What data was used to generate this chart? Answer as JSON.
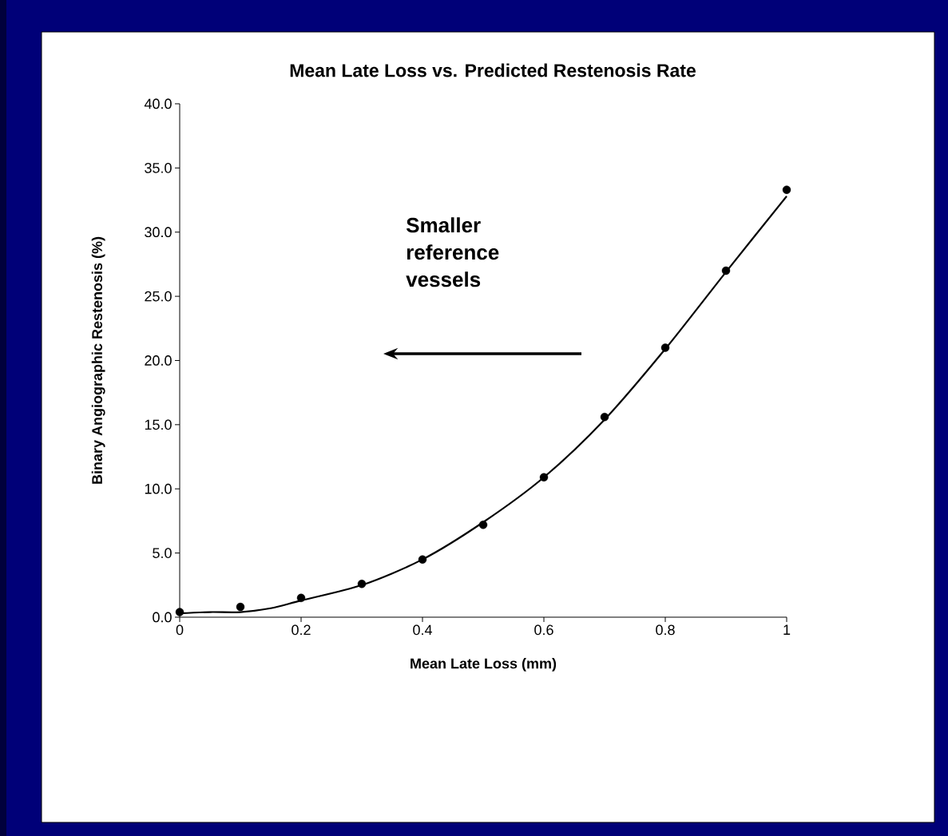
{
  "chart_data": {
    "type": "scatter",
    "title": "Mean Late Loss vs. Predicted Restenosis Rate",
    "xlabel": "Mean Late Loss (mm)",
    "ylabel": "Binary Angiographic Restenosis (%)",
    "annotations": [
      "Smaller reference vessels"
    ],
    "xlim": [
      0,
      1
    ],
    "xticks": [
      0,
      0.2,
      0.4,
      0.6,
      0.8,
      1
    ],
    "ylim": [
      0,
      40
    ],
    "yticks": [
      {
        "value": 0,
        "label": "0.0"
      },
      {
        "value": 5,
        "label": "5.0"
      },
      {
        "value": 10,
        "label": "10.0"
      },
      {
        "value": 15,
        "label": "15.0"
      },
      {
        "value": 20,
        "label": "20.0"
      },
      {
        "value": 25,
        "label": "25.0"
      },
      {
        "value": 30,
        "label": "30.0"
      },
      {
        "value": 35,
        "label": "35.0"
      },
      {
        "value": 40,
        "label": "40.0"
      }
    ],
    "grid": false,
    "series": [
      {
        "marker": "circle",
        "color": "#000000",
        "x": [
          0,
          0.1,
          0.2,
          0.3,
          0.4,
          0.5,
          0.6,
          0.7,
          0.8,
          0.9,
          1.0
        ],
        "values": [
          0.4,
          0.8,
          1.5,
          2.6,
          4.5,
          7.2,
          10.9,
          15.6,
          21.0,
          27.0,
          33.3
        ]
      },
      {
        "type": "line",
        "marker": "none",
        "line_style": "solid",
        "color": "#000000",
        "x": [
          0,
          0.05,
          0.1,
          0.15,
          0.2,
          0.3,
          0.4,
          0.5,
          0.6,
          0.7,
          0.8,
          0.9,
          1.0
        ],
        "values": [
          0.3,
          0.4,
          0.4,
          0.7,
          1.3,
          2.5,
          4.5,
          7.4,
          10.9,
          15.4,
          20.9,
          26.9,
          32.8
        ]
      }
    ]
  }
}
